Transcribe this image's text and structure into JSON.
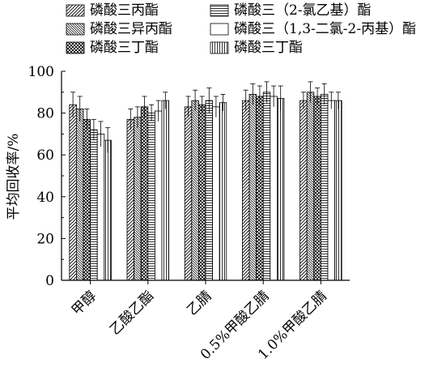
{
  "chart_data": {
    "type": "bar",
    "title": "",
    "xlabel": "",
    "ylabel": "平均回收率/%",
    "ylim": [
      0,
      100
    ],
    "yticks": [
      0,
      20,
      40,
      60,
      80,
      100
    ],
    "grid": false,
    "legend_position": "top",
    "categories": [
      "甲醇",
      "乙酸乙酯",
      "乙腈",
      "0.5%甲酸乙腈",
      "1.0%甲酸乙腈"
    ],
    "series": [
      {
        "name": "磷酸三丙酯",
        "values": [
          84,
          77,
          83,
          86,
          86
        ],
        "errors": [
          6,
          5,
          5,
          5,
          4
        ]
      },
      {
        "name": "磷酸三异丙酯",
        "values": [
          82,
          78,
          86,
          89,
          90
        ],
        "errors": [
          6,
          5,
          5,
          5,
          5
        ]
      },
      {
        "name": "磷酸三丁酯",
        "values": [
          77,
          83,
          84,
          88,
          88
        ],
        "errors": [
          5,
          5,
          4,
          5,
          4
        ]
      },
      {
        "name": "磷酸三（2-氯乙基）酯",
        "values": [
          72,
          80,
          86,
          90,
          89
        ],
        "errors": [
          5,
          4,
          6,
          5,
          5
        ]
      },
      {
        "name": "磷酸三（1,3-二氯-2-丙基）酯",
        "values": [
          70,
          81,
          83,
          88,
          86
        ],
        "errors": [
          6,
          5,
          5,
          5,
          4
        ]
      },
      {
        "name": "磷酸三丁酯",
        "values": [
          67,
          86,
          85,
          87,
          86
        ],
        "errors": [
          6,
          4,
          4,
          6,
          4
        ]
      }
    ]
  },
  "patterns": [
    "diag-fwd",
    "diag-back",
    "cross",
    "horiz",
    "blank",
    "vert"
  ]
}
